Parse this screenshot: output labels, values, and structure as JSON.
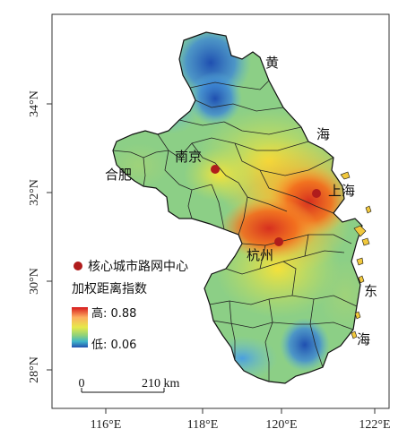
{
  "map": {
    "x_ticks": [
      "116°E",
      "118°E",
      "120°E",
      "122°E"
    ],
    "y_ticks": [
      "34°N",
      "32°N",
      "30°N",
      "28°N"
    ],
    "cities": [
      {
        "name": "南京"
      },
      {
        "name": "上海"
      },
      {
        "name": "杭州"
      },
      {
        "name": "合肥"
      }
    ],
    "sea_labels": [
      "黄",
      "海",
      "东",
      "海"
    ],
    "legend": {
      "point_label": "核心城市路网中心",
      "title": "加权距离指数",
      "high_label": "高: 0.88",
      "low_label": "低: 0.06",
      "point_color": "#b01c1c"
    },
    "scale": {
      "zero": "0",
      "distance": "210 km"
    }
  }
}
